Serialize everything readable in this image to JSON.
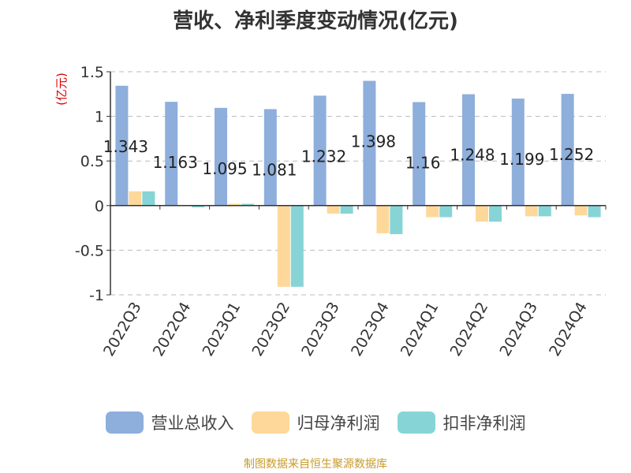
{
  "title": "营收、净利季度变动情况(亿元)",
  "footer": "制图数据来自恒生聚源数据库",
  "chart_data": {
    "type": "bar",
    "unit_label": "(亿元)",
    "categories": [
      "2022Q3",
      "2022Q4",
      "2023Q1",
      "2023Q2",
      "2023Q3",
      "2023Q4",
      "2024Q1",
      "2024Q2",
      "2024Q3",
      "2024Q4"
    ],
    "ylim": [
      -1,
      1.5
    ],
    "yticks": [
      1.5,
      1,
      0.5,
      0,
      -0.5,
      -1
    ],
    "ytick_labels": [
      "1.5",
      "1",
      "0.5",
      "0",
      "-0.5",
      "-1"
    ],
    "grid": true,
    "legend_position": "bottom",
    "series": [
      {
        "name": "营业总收入",
        "color": "#8eaedb",
        "values": [
          1.343,
          1.163,
          1.095,
          1.081,
          1.232,
          1.398,
          1.16,
          1.248,
          1.199,
          1.252
        ],
        "labels": [
          "1.343",
          "1.163",
          "1.095",
          "1.081",
          "1.232",
          "1.398",
          "1.16",
          "1.248",
          "1.199",
          "1.252"
        ]
      },
      {
        "name": "归母净利润",
        "color": "#fdd89a",
        "values": [
          0.16,
          0.005,
          0.02,
          -0.91,
          -0.09,
          -0.31,
          -0.13,
          -0.18,
          -0.12,
          -0.11
        ]
      },
      {
        "name": "扣非净利润",
        "color": "#87d4d6",
        "values": [
          0.16,
          -0.02,
          0.02,
          -0.91,
          -0.09,
          -0.32,
          -0.13,
          -0.18,
          -0.12,
          -0.13
        ]
      }
    ]
  }
}
